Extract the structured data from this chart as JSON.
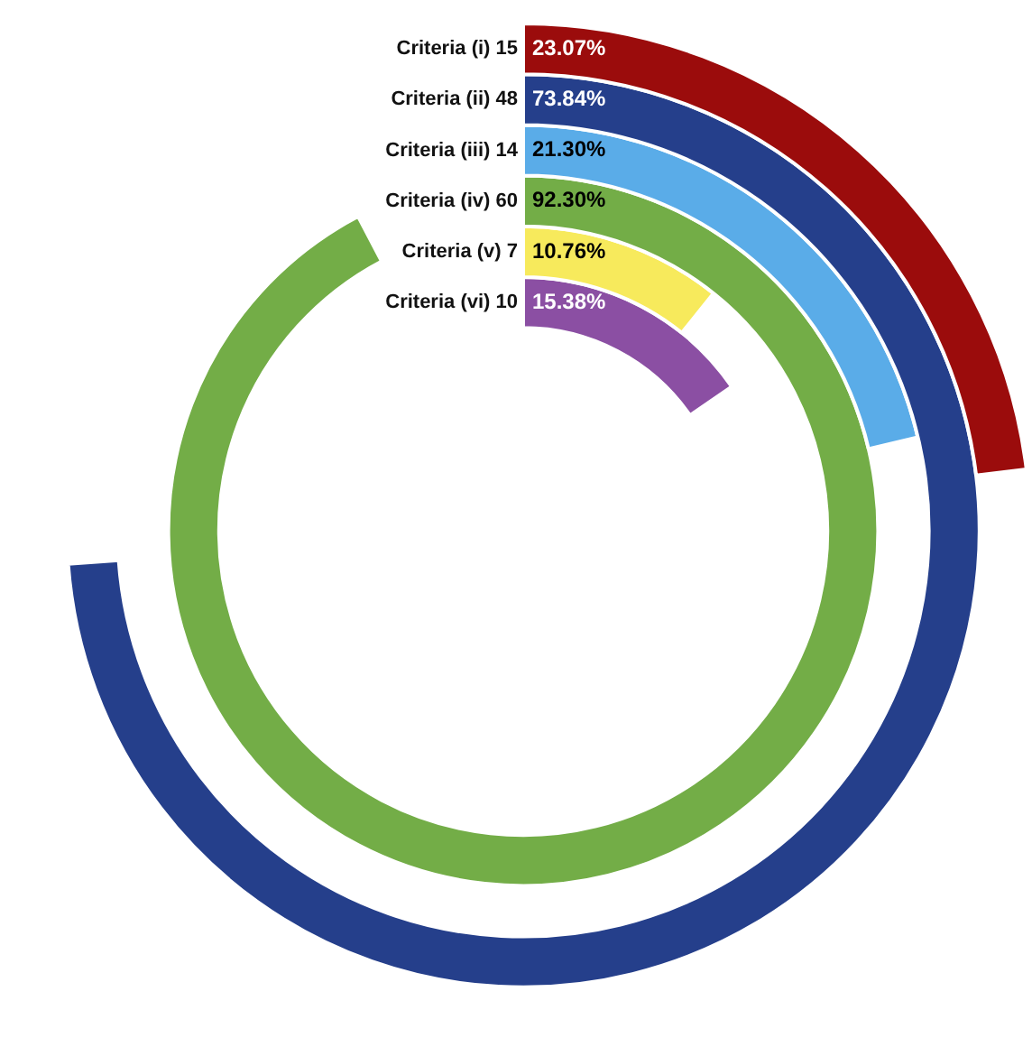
{
  "chart_data": {
    "type": "other",
    "categories": [
      "Criteria (i) 15",
      "Criteria (ii) 48",
      "Criteria (iii) 14",
      "Criteria (iv) 60",
      "Criteria (v) 7",
      "Criteria (vi) 10"
    ],
    "values": [
      23.07,
      73.84,
      21.3,
      92.3,
      10.76,
      15.38
    ],
    "colors": [
      "#9b0c0c",
      "#253f8b",
      "#5aace8",
      "#73ad47",
      "#f7ea5c",
      "#8b4fa3"
    ],
    "value_labels": [
      "23.07%",
      "73.84%",
      "21.30%",
      "92.30%",
      "10.76%",
      "15.38%"
    ]
  }
}
